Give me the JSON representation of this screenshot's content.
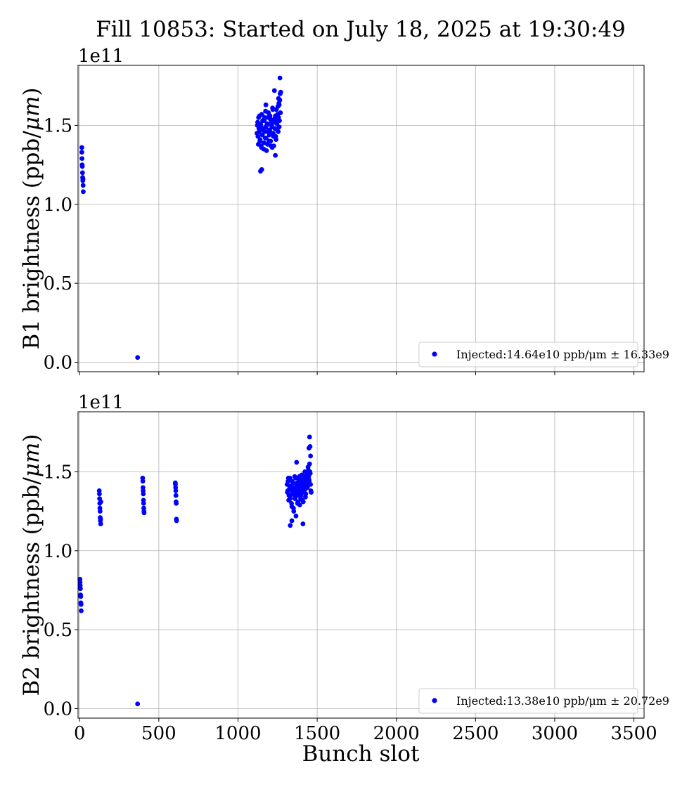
{
  "figure": {
    "title": "Fill 10853: Started on July 18, 2025 at 19:30:49",
    "xlabel": "Bunch slot",
    "color": "#0000ff"
  },
  "chart_data": [
    {
      "type": "scatter",
      "ylabel": "B1 brightness (ppb/μm)",
      "ylabel_plain": "B1 brightness (ppb/",
      "ylabel_unit": "μm",
      "ylabel_close": ")",
      "offset_text": "1e11",
      "xlim": [
        -10,
        3564
      ],
      "ylim": [
        -0.06,
        1.88
      ],
      "yscale": 100000000000.0,
      "xticks": [
        0,
        500,
        1000,
        1500,
        2000,
        2500,
        3000,
        3500
      ],
      "yticks": [
        0.0,
        0.5,
        1.0,
        1.5
      ],
      "ytick_labels": [
        "0.0",
        "0.5",
        "1.0",
        "1.5"
      ],
      "grid": true,
      "legend": {
        "label": "Injected:14.64e10 ppb/μm ± 16.33e9",
        "placement": "lower right"
      },
      "series": [
        {
          "clusters": [
            {
              "x": [
                14,
                14,
                15,
                16,
                17,
                18,
                19,
                20,
                21,
                22,
                23
              ],
              "y": [
                1.36,
                1.33,
                1.29,
                1.25,
                1.24,
                1.2,
                1.17,
                1.15,
                1.16,
                1.12,
                1.08
              ]
            },
            {
              "x": [
                366
              ],
              "y": [
                0.03
              ]
            },
            {
              "x": [
                1120,
                1124,
                1128,
                1132,
                1136,
                1140,
                1144,
                1148,
                1152,
                1156,
                1160,
                1164,
                1168,
                1172,
                1176,
                1180,
                1184,
                1188,
                1192,
                1196,
                1200,
                1204,
                1208,
                1212,
                1216,
                1220,
                1224,
                1228,
                1232,
                1236,
                1240,
                1244,
                1248,
                1252,
                1256,
                1260,
                1264,
                1268,
                1122,
                1126,
                1130,
                1134,
                1138,
                1142,
                1146,
                1150,
                1154,
                1158,
                1162,
                1166,
                1170,
                1174,
                1178,
                1182,
                1186,
                1190,
                1194,
                1198,
                1202,
                1206,
                1210,
                1214,
                1218,
                1222,
                1226,
                1230,
                1234,
                1238,
                1242,
                1246,
                1250,
                1254,
                1258,
                1262,
                1266,
                1142,
                1150,
                1230,
                1265,
                1270,
                1260,
                1256,
                1236,
                1176,
                1216
              ],
              "y": [
                1.45,
                1.52,
                1.38,
                1.48,
                1.56,
                1.41,
                1.5,
                1.36,
                1.44,
                1.53,
                1.47,
                1.39,
                1.55,
                1.42,
                1.49,
                1.34,
                1.51,
                1.46,
                1.58,
                1.4,
                1.47,
                1.54,
                1.37,
                1.5,
                1.45,
                1.6,
                1.43,
                1.52,
                1.48,
                1.56,
                1.41,
                1.53,
                1.47,
                1.62,
                1.55,
                1.49,
                1.66,
                1.58,
                1.5,
                1.43,
                1.55,
                1.46,
                1.4,
                1.51,
                1.37,
                1.57,
                1.44,
                1.48,
                1.35,
                1.53,
                1.46,
                1.59,
                1.42,
                1.5,
                1.38,
                1.55,
                1.47,
                1.44,
                1.56,
                1.4,
                1.52,
                1.49,
                1.61,
                1.45,
                1.37,
                1.54,
                1.48,
                1.43,
                1.6,
                1.51,
                1.57,
                1.46,
                1.64,
                1.53,
                1.7,
                1.21,
                1.22,
                1.72,
                1.8,
                1.71,
                1.63,
                1.67,
                1.31,
                1.63,
                1.36
              ]
            }
          ]
        }
      ]
    },
    {
      "type": "scatter",
      "ylabel": "B2 brightness (ppb/μm)",
      "ylabel_plain": "B2 brightness (ppb/",
      "ylabel_unit": "μm",
      "ylabel_close": ")",
      "offset_text": "1e11",
      "xlim": [
        -10,
        3564
      ],
      "ylim": [
        -0.06,
        1.88
      ],
      "yscale": 100000000000.0,
      "xticks": [
        0,
        500,
        1000,
        1500,
        2000,
        2500,
        3000,
        3500
      ],
      "xtick_labels": [
        "0",
        "500",
        "1000",
        "1500",
        "2000",
        "2500",
        "3000",
        "3500"
      ],
      "yticks": [
        0.0,
        0.5,
        1.0,
        1.5
      ],
      "ytick_labels": [
        "0.0",
        "0.5",
        "1.0",
        "1.5"
      ],
      "grid": true,
      "legend": {
        "label": "Injected:13.38e10 ppb/μm ± 20.72e9",
        "placement": "lower right"
      },
      "series": [
        {
          "clusters": [
            {
              "x": [
                2,
                3,
                4,
                5,
                6,
                7,
                8,
                9,
                10
              ],
              "y": [
                0.82,
                0.8,
                0.78,
                0.76,
                0.72,
                0.71,
                0.67,
                0.66,
                0.62
              ]
            },
            {
              "x": [
                124,
                125,
                126,
                127,
                128,
                129,
                130,
                131,
                132,
                133,
                134
              ],
              "y": [
                1.38,
                1.36,
                1.33,
                1.3,
                1.27,
                1.25,
                1.21,
                1.19,
                1.2,
                1.17,
                1.31
              ]
            },
            {
              "x": [
                398,
                399,
                400,
                401,
                402,
                403,
                404,
                405,
                406,
                407
              ],
              "y": [
                1.46,
                1.44,
                1.4,
                1.38,
                1.36,
                1.32,
                1.3,
                1.27,
                1.25,
                1.24
              ]
            },
            {
              "x": [
                604,
                605,
                606,
                607,
                608,
                609,
                610,
                611,
                612
              ],
              "y": [
                1.43,
                1.42,
                1.4,
                1.38,
                1.35,
                1.31,
                1.3,
                1.2,
                1.19
              ]
            },
            {
              "x": [
                366
              ],
              "y": [
                0.03
              ]
            },
            {
              "x": [
                1310,
                1314,
                1318,
                1322,
                1326,
                1330,
                1334,
                1338,
                1342,
                1346,
                1350,
                1354,
                1358,
                1362,
                1366,
                1370,
                1374,
                1378,
                1382,
                1386,
                1390,
                1394,
                1398,
                1402,
                1406,
                1410,
                1414,
                1418,
                1422,
                1426,
                1430,
                1434,
                1438,
                1442,
                1446,
                1450,
                1454,
                1458,
                1312,
                1316,
                1320,
                1324,
                1328,
                1332,
                1336,
                1340,
                1344,
                1348,
                1352,
                1356,
                1360,
                1364,
                1368,
                1372,
                1376,
                1380,
                1384,
                1388,
                1392,
                1396,
                1400,
                1404,
                1408,
                1412,
                1416,
                1420,
                1424,
                1428,
                1432,
                1436,
                1440,
                1444,
                1448,
                1452,
                1456,
                1460,
                1452,
                1455,
                1458,
                1330,
                1340,
                1410,
                1370,
                1448,
                1462
              ],
              "y": [
                1.42,
                1.38,
                1.46,
                1.35,
                1.41,
                1.33,
                1.39,
                1.3,
                1.44,
                1.36,
                1.27,
                1.4,
                1.47,
                1.34,
                1.22,
                1.38,
                1.43,
                1.31,
                1.36,
                1.45,
                1.29,
                1.41,
                1.35,
                1.48,
                1.32,
                1.39,
                1.44,
                1.37,
                1.5,
                1.34,
                1.42,
                1.46,
                1.4,
                1.53,
                1.47,
                1.44,
                1.5,
                1.42,
                1.37,
                1.44,
                1.32,
                1.39,
                1.46,
                1.35,
                1.41,
                1.28,
                1.37,
                1.43,
                1.25,
                1.39,
                1.33,
                1.46,
                1.36,
                1.42,
                1.3,
                1.4,
                1.35,
                1.47,
                1.38,
                1.33,
                1.43,
                1.37,
                1.45,
                1.31,
                1.41,
                1.47,
                1.39,
                1.36,
                1.44,
                1.49,
                1.41,
                1.51,
                1.45,
                1.55,
                1.49,
                1.38,
                1.72,
                1.66,
                1.6,
                1.16,
                1.19,
                1.17,
                1.56,
                1.65,
                1.37
              ]
            }
          ]
        }
      ]
    }
  ]
}
